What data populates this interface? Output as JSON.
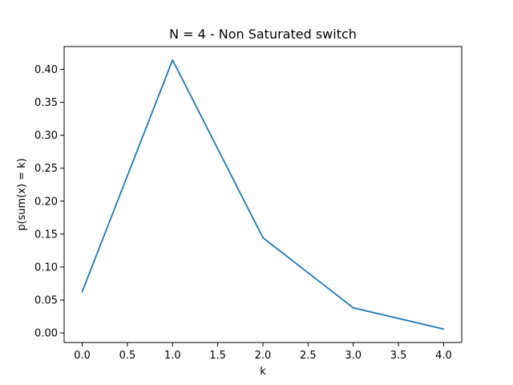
{
  "chart_data": {
    "type": "line",
    "title": "N = 4 - Non Saturated switch",
    "xlabel": "k",
    "ylabel": "p(sum(x) = k)",
    "x": [
      0,
      1,
      2,
      3,
      4
    ],
    "series": [
      {
        "values": [
          0.0625,
          0.4142,
          0.1445,
          0.0381,
          0.0059
        ],
        "color": "#1f77b4"
      }
    ],
    "xlim": [
      -0.2,
      4.2
    ],
    "ylim": [
      -0.0145,
      0.4346
    ],
    "xticks": [
      0.0,
      0.5,
      1.0,
      1.5,
      2.0,
      2.5,
      3.0,
      3.5,
      4.0
    ],
    "xtick_labels": [
      "0.0",
      "0.5",
      "1.0",
      "1.5",
      "2.0",
      "2.5",
      "3.0",
      "3.5",
      "4.0"
    ],
    "yticks": [
      0.0,
      0.05,
      0.1,
      0.15,
      0.2,
      0.25,
      0.3,
      0.35,
      0.4
    ],
    "ytick_labels": [
      "0.00",
      "0.05",
      "0.10",
      "0.15",
      "0.20",
      "0.25",
      "0.30",
      "0.35",
      "0.40"
    ],
    "grid": false,
    "legend": false
  }
}
